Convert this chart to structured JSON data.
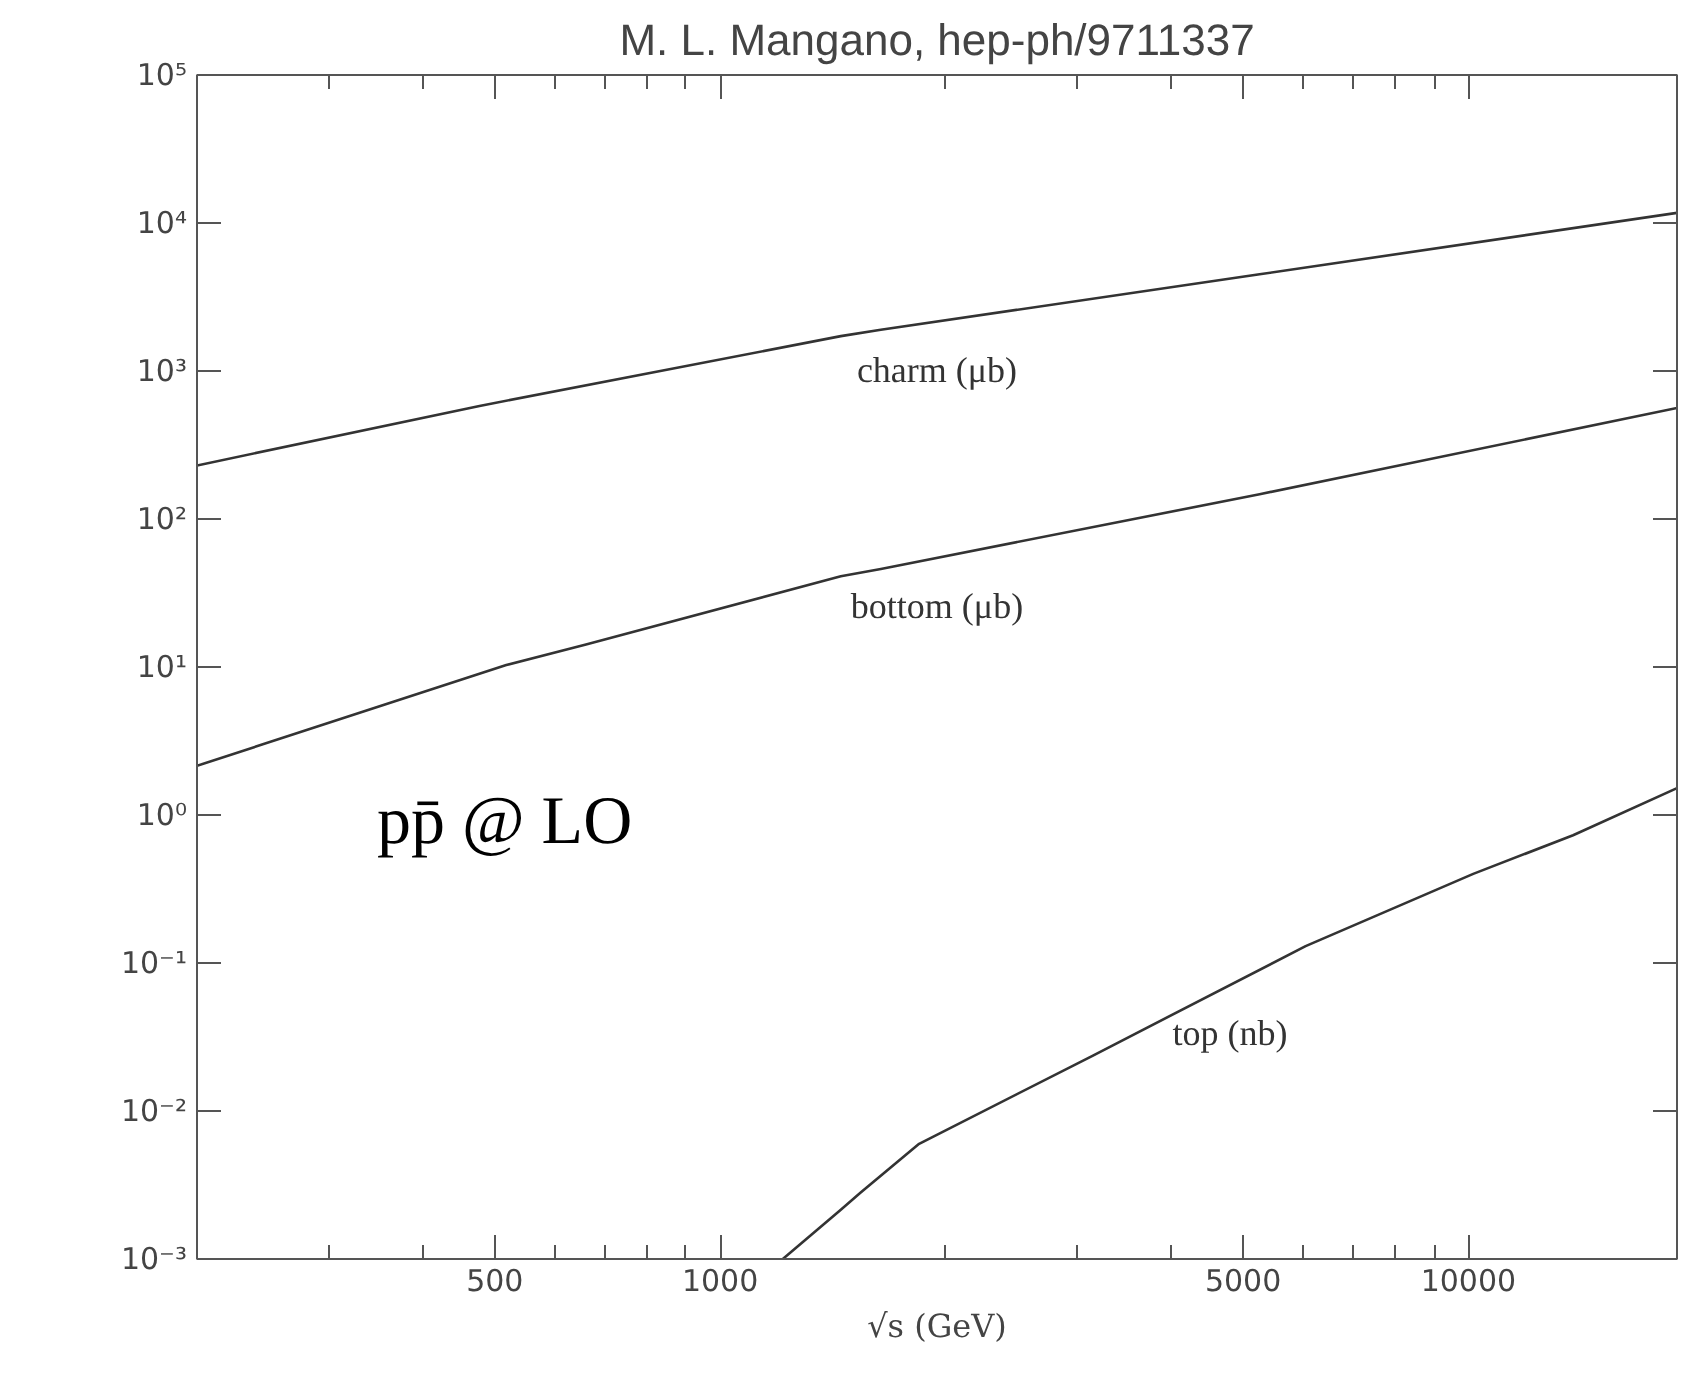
{
  "chart_data": {
    "type": "line",
    "title": "M. L. Mangano, hep-ph/9711337",
    "xlabel": "√s (GeV)",
    "log": "xy",
    "grid": false,
    "marker": "none",
    "line_style": "solid",
    "xlim": [
      200,
      19000
    ],
    "ylim": [
      0.001,
      100000
    ],
    "xticks": [
      {
        "value": 200,
        "label": null
      },
      {
        "value": 300,
        "label": null
      },
      {
        "value": 400,
        "label": null
      },
      500,
      {
        "value": 600,
        "label": null
      },
      {
        "value": 700,
        "label": null
      },
      {
        "value": 800,
        "label": null
      },
      {
        "value": 900,
        "label": null
      },
      1000,
      {
        "value": 2000,
        "label": null
      },
      {
        "value": 3000,
        "label": null
      },
      {
        "value": 4000,
        "label": null
      },
      5000,
      {
        "value": 6000,
        "label": null
      },
      {
        "value": 7000,
        "label": null
      },
      {
        "value": 8000,
        "label": null
      },
      {
        "value": 9000,
        "label": null
      },
      10000
    ],
    "yticks": [
      {
        "value": 0.001,
        "label": "10⁻³"
      },
      {
        "value": 0.01,
        "label": "10⁻²"
      },
      {
        "value": 0.1,
        "label": "10⁻¹"
      },
      {
        "value": 1,
        "label": "10⁰"
      },
      {
        "value": 10,
        "label": "10¹"
      },
      {
        "value": 100,
        "label": "10²"
      },
      {
        "value": 1000,
        "label": "10³"
      },
      {
        "value": 10000,
        "label": "10⁴"
      },
      {
        "value": 100000,
        "label": "10⁵"
      }
    ],
    "series": [
      {
        "name": "charm (μb)",
        "color": "#333333",
        "x": [
          200,
          477,
          1450,
          1640,
          5260,
          19000
        ],
        "values": [
          230,
          581,
          1720,
          1900,
          4500,
          11700
        ]
      },
      {
        "name": "bottom (μb)",
        "color": "#333333",
        "x": [
          200,
          518,
          662,
          1450,
          1640,
          5260,
          19000
        ],
        "values": [
          2.15,
          10.3,
          14.2,
          41,
          46,
          147,
          562
        ]
      },
      {
        "name": "top (nb)",
        "color": "#333333",
        "x": [
          1213,
          1450,
          1540,
          1845,
          3150,
          6060,
          10150,
          13800,
          19000
        ],
        "values": [
          0.001,
          0.00215,
          0.0028,
          0.006,
          0.0237,
          0.13,
          0.4,
          0.73,
          1.52
        ]
      }
    ],
    "annotations": [
      "pp̄ @ LO"
    ]
  }
}
